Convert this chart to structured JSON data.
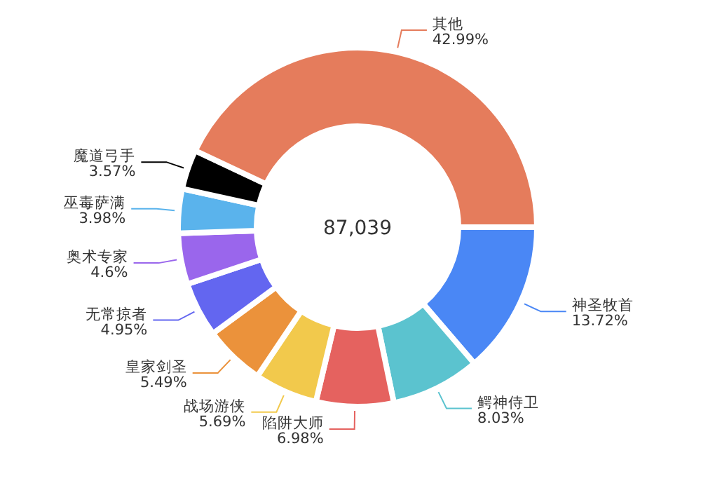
{
  "chart_data": {
    "type": "donut",
    "categories": [
      "神圣牧首",
      "鳄神侍卫",
      "陷阱大师",
      "战场游侠",
      "皇家剑圣",
      "无常掠者",
      "奥术专家",
      "巫毒萨满",
      "魔道弓手",
      "其他"
    ],
    "values": [
      13.72,
      8.03,
      6.98,
      5.69,
      5.49,
      4.95,
      4.6,
      3.98,
      3.57,
      42.99
    ],
    "colors": [
      "#4a87f5",
      "#5bc3cf",
      "#e5625f",
      "#f2c94c",
      "#eb923b",
      "#6366f0",
      "#9a66ec",
      "#5ab3ec",
      "#000000",
      "#e57c5c"
    ],
    "value_labels": [
      "13.72%",
      "8.03%",
      "6.98%",
      "5.69%",
      "5.49%",
      "4.95%",
      "4.6%",
      "3.98%",
      "3.57%",
      "42.99%"
    ],
    "annotations": [
      "87,039"
    ]
  }
}
